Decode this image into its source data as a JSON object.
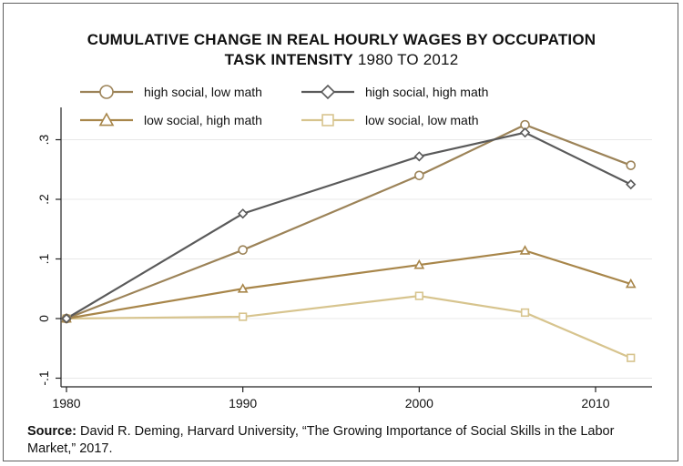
{
  "title": {
    "bold_part": "CUMULATIVE CHANGE IN REAL HOURLY WAGES BY OCCUPATION",
    "bold_part2": "TASK INTENSITY",
    "normal_part": "1980 TO 2012"
  },
  "source": {
    "label": "Source:",
    "text": "David R. Deming, Harvard University, “The Growing Importance of Social Skills in the Labor Market,” 2017."
  },
  "chart_data": {
    "type": "line",
    "title": "CUMULATIVE CHANGE IN REAL HOURLY WAGES BY OCCUPATION TASK INTENSITY 1980 TO 2012",
    "xlabel": "",
    "ylabel": "",
    "x": [
      1980,
      1990,
      2000,
      2006,
      2012
    ],
    "xlim": [
      1980,
      2012
    ],
    "ylim": [
      -0.1,
      0.35
    ],
    "x_ticks": [
      "1980",
      "1990",
      "2000",
      "2010"
    ],
    "y_ticks": [
      "-.1",
      "0",
      ".1",
      ".2",
      ".3"
    ],
    "grid": true,
    "legend_position": "top",
    "series": [
      {
        "name": "high social, low math",
        "marker": "circle",
        "color": "#9c8358",
        "values": [
          0.0,
          0.115,
          0.24,
          0.325,
          0.257
        ]
      },
      {
        "name": "high social, high math",
        "marker": "diamond",
        "color": "#5a5a5a",
        "values": [
          0.0,
          0.176,
          0.272,
          0.312,
          0.225
        ]
      },
      {
        "name": "low social, high math",
        "marker": "triangle",
        "color": "#a8864a",
        "values": [
          0.0,
          0.05,
          0.09,
          0.114,
          0.058
        ]
      },
      {
        "name": "low social, low math",
        "marker": "square",
        "color": "#d7c48e",
        "values": [
          0.0,
          0.003,
          0.038,
          0.01,
          -0.066
        ]
      }
    ]
  }
}
